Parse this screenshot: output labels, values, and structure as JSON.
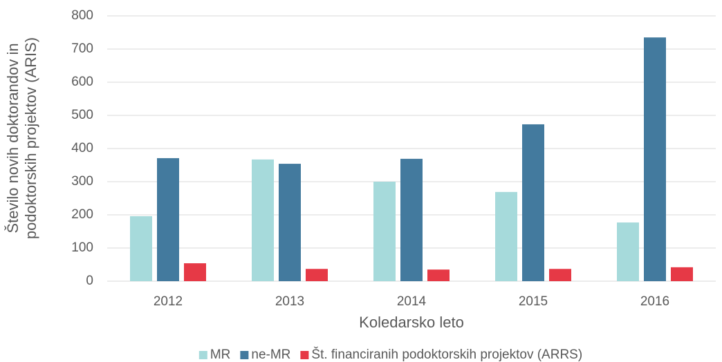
{
  "chart_data": {
    "type": "bar",
    "x_label": "Koledarsko leto",
    "y_label": [
      "Število novih doktorandov in",
      "podoktorskih projektov (ARIS)"
    ],
    "categories": [
      "2012",
      "2013",
      "2014",
      "2015",
      "2016"
    ],
    "series": [
      {
        "name": "MR",
        "color": "#a6dadb",
        "values": [
          196,
          367,
          300,
          269,
          177
        ]
      },
      {
        "name": "ne-MR",
        "color": "#437a9e",
        "values": [
          371,
          354,
          369,
          473,
          735
        ]
      },
      {
        "name": "Št. financiranih podoktorskih projektov (ARRS)",
        "color": "#e63946",
        "values": [
          54,
          37,
          35,
          37,
          42
        ]
      }
    ],
    "ylim": [
      0,
      800
    ],
    "yticks": [
      0,
      100,
      200,
      300,
      400,
      500,
      600,
      700,
      800
    ],
    "grid": true,
    "legend": "bottom"
  }
}
